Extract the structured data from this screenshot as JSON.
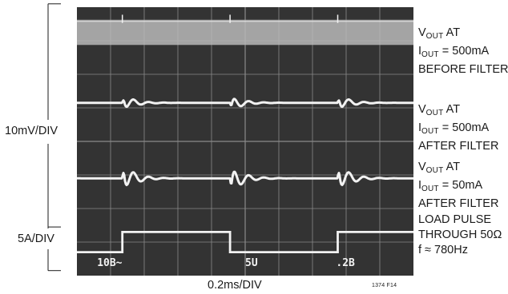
{
  "chart_data": {
    "type": "line",
    "title": "",
    "xlabel": "0.2ms/DIV",
    "scale_labels": {
      "upper": "10mV/DIV",
      "lower": "5A/DIV"
    },
    "grid": {
      "x_divisions": 10,
      "y_divisions": 8,
      "visible": true
    },
    "screen_readout": [
      "10B~",
      "5U",
      ".2B"
    ],
    "pulse": {
      "period_ms": 1.28,
      "first_rising_edge_ms": 0.27
    },
    "series": [
      {
        "label_lines": [
          {
            "main": "V",
            "sub": "OUT",
            "tail": " AT"
          },
          {
            "main": "I",
            "sub": "OUT",
            "tail": " = 500mA"
          },
          {
            "main": "BEFORE FILTER",
            "sub": "",
            "tail": ""
          }
        ],
        "center_div": 3.25,
        "band_div": 0.75,
        "spike_div": 0.15
      },
      {
        "label_lines": [
          {
            "main": "V",
            "sub": "OUT",
            "tail": " AT"
          },
          {
            "main": "I",
            "sub": "OUT",
            "tail": " = 500mA"
          },
          {
            "main": "AFTER FILTER",
            "sub": "",
            "tail": ""
          }
        ],
        "center_div": 1.15,
        "transient_div": 0.45,
        "ring_div": 0.25
      },
      {
        "label_lines": [
          {
            "main": "V",
            "sub": "OUT",
            "tail": " AT"
          },
          {
            "main": "I",
            "sub": "OUT",
            "tail": " = 50mA"
          },
          {
            "main": "AFTER FILTER",
            "sub": "",
            "tail": ""
          }
        ],
        "center_div": -1.1,
        "transient_div": 0.9,
        "ring_div": 0.45
      },
      {
        "label_lines": [
          {
            "main": "LOAD PULSE",
            "sub": "",
            "tail": ""
          },
          {
            "main": "THROUGH 50Ω",
            "sub": "",
            "tail": ""
          },
          {
            "main": "f ≈ 780Hz",
            "sub": "",
            "tail": ""
          }
        ],
        "high_div": -2.7,
        "low_div": -3.3
      }
    ]
  },
  "figure_id": "1374 F14",
  "colors": {
    "screen": "#333333",
    "grid": "#8a8a8a",
    "trace": "#f2f2f2",
    "band": "#b9b9b9",
    "ink": "#1a1a1a"
  }
}
